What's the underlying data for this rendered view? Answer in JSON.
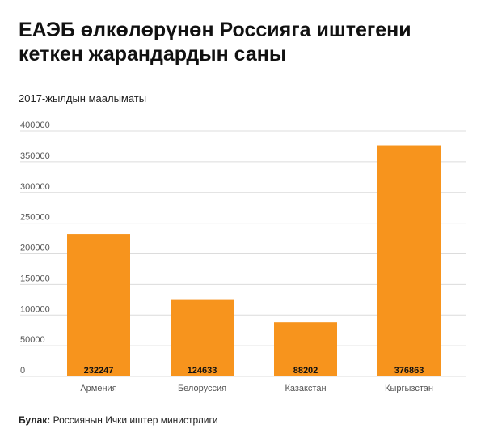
{
  "title": "ЕАЭБ өлкөлөрүнөн Россияга иштегени кеткен жарандардын саны",
  "subtitle": "2017-жылдын маалыматы",
  "source": {
    "label": "Булак:",
    "text": "Россиянын Ички иштер министрлиги"
  },
  "colors": {
    "bar": "#f7941d",
    "grid": "#dcdcdc",
    "axis": "#555555",
    "value_label": "#111111"
  },
  "chart_data": {
    "type": "bar",
    "categories": [
      "Армения",
      "Белоруссия",
      "Казакстан",
      "Кыргызстан"
    ],
    "values": [
      232247,
      124633,
      88202,
      376863
    ],
    "value_labels": [
      "232247",
      "124633",
      "88202",
      "376863"
    ],
    "ylim": [
      0,
      400000
    ],
    "yticks": [
      0,
      50000,
      100000,
      150000,
      200000,
      250000,
      300000,
      350000,
      400000
    ],
    "ytick_labels": [
      "0",
      "50000",
      "100000",
      "150000",
      "200000",
      "250000",
      "300000",
      "350000",
      "400000"
    ],
    "grid": true,
    "legend": "none"
  }
}
